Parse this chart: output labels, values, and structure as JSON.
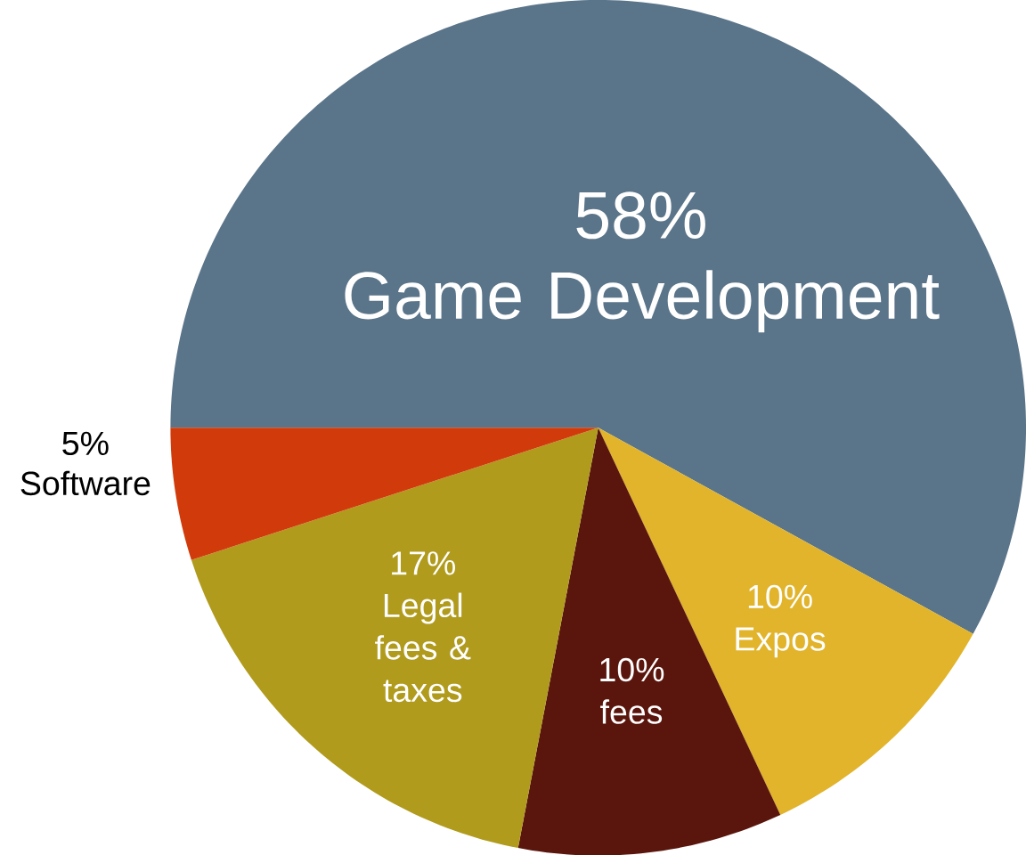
{
  "chart_data": {
    "type": "pie",
    "categories": [
      "Game Development",
      "Expos",
      "fees",
      "Legal fees & taxes",
      "Software"
    ],
    "values": [
      58,
      10,
      10,
      17,
      5
    ],
    "value_labels": [
      "58%",
      "10%",
      "10%",
      "17%",
      "5%"
    ],
    "colors": [
      "#5a7489",
      "#e1b42b",
      "#5a160c",
      "#b09b1d",
      "#d13b0b"
    ]
  }
}
